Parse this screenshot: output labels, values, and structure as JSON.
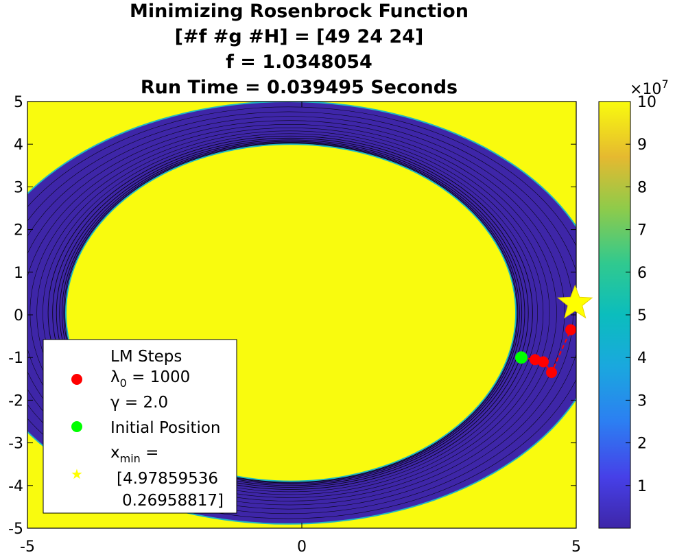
{
  "chart_data": {
    "type": "contour",
    "title": [
      "Minimizing Rosenbrock Function",
      "[#f #g #H] = [49 24 24]",
      "f = 1.0348054",
      "Run Time = 0.039495 Seconds"
    ],
    "xlim": [
      -5,
      5
    ],
    "ylim": [
      -5,
      5
    ],
    "x_ticks": [
      "-5",
      "0",
      "5"
    ],
    "y_ticks": [
      "5",
      "4",
      "3",
      "2",
      "1",
      "0",
      "-1",
      "-2",
      "-3",
      "-4",
      "-5"
    ],
    "colorbar": {
      "range": [
        0,
        10
      ],
      "ticks": [
        "10",
        "9",
        "8",
        "7",
        "6",
        "5",
        "4",
        "3",
        "2",
        "1"
      ],
      "exponent_base": "×10",
      "exponent_power": "7"
    },
    "surface": {
      "inner_ellipse": {
        "center": [
          -0.2,
          0.05
        ],
        "rx": 4.1,
        "ry": 3.95
      },
      "outer_ellipse": {
        "center": [
          -0.25,
          0.05
        ],
        "rx": 5.75,
        "ry": 4.95
      }
    },
    "lm_steps": {
      "x": [
        4.0,
        4.25,
        4.4,
        4.55,
        4.9
      ],
      "y": [
        -1.0,
        -1.05,
        -1.1,
        -1.35,
        -0.35
      ]
    },
    "initial_position": {
      "x": 4.0,
      "y": -1.0
    },
    "x_min_point": {
      "x": 4.97859536,
      "y": 0.26958817
    },
    "legend": {
      "position": "bottom-left",
      "title": "LM Steps",
      "lambda_symbol": "λ",
      "lambda_sub": "0",
      "lambda_value": " = 1000",
      "gamma": "γ = 2.0",
      "initial": "Initial Position",
      "xmin_label": "x",
      "xmin_sub": "min",
      "xmin_eq": " =",
      "xmin_value_1": "[4.97859536",
      "xmin_value_2": "0.26958817]"
    },
    "colors": {
      "high": "#f9fb0e",
      "low": "#3e26a8",
      "steps": "#ff0000",
      "initial": "#00ff00",
      "star": "#ffff00"
    }
  }
}
